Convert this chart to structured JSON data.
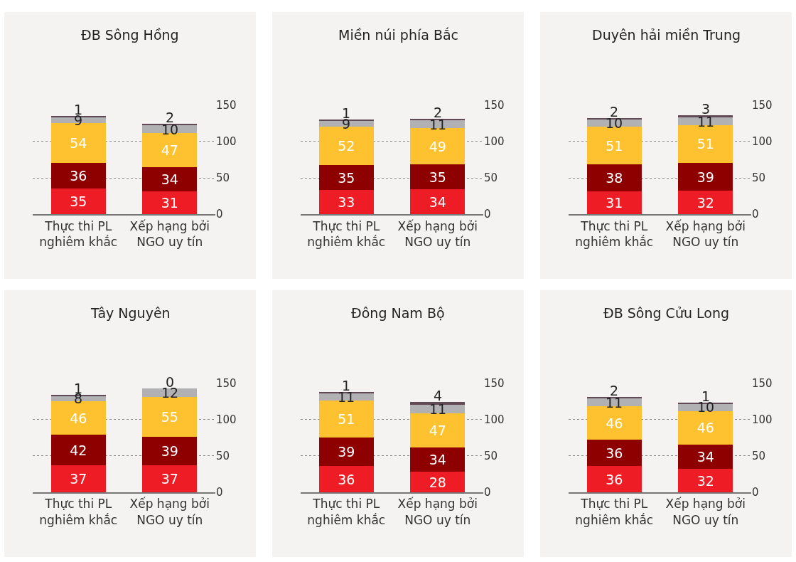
{
  "chart_data": [
    {
      "type": "bar",
      "stacked": true,
      "title": "ĐB Sông Hồng",
      "categories": [
        "Thực thi PL\nnghiêm khắc",
        "Xếp hạng bởi\nNGO uy tín"
      ],
      "series": [
        {
          "color": "#ee1d25",
          "values": [
            35,
            31
          ]
        },
        {
          "color": "#8e0000",
          "values": [
            36,
            34
          ]
        },
        {
          "color": "#fec231",
          "values": [
            54,
            47
          ]
        },
        {
          "color": "#b1b1b3",
          "values": [
            9,
            10
          ]
        },
        {
          "color": "#614a55",
          "values": [
            1,
            2
          ]
        }
      ],
      "ylim": [
        0,
        150
      ],
      "yticks": [
        0,
        50,
        100,
        150
      ],
      "grid": "y",
      "data_labels": true
    },
    {
      "type": "bar",
      "stacked": true,
      "title": "Miền núi phía Bắc",
      "categories": [
        "Thực thi PL\nnghiêm khắc",
        "Xếp hạng bởi\nNGO uy tín"
      ],
      "series": [
        {
          "color": "#ee1d25",
          "values": [
            33,
            34
          ]
        },
        {
          "color": "#8e0000",
          "values": [
            35,
            35
          ]
        },
        {
          "color": "#fec231",
          "values": [
            52,
            49
          ]
        },
        {
          "color": "#b1b1b3",
          "values": [
            9,
            11
          ]
        },
        {
          "color": "#614a55",
          "values": [
            1,
            2
          ]
        }
      ],
      "ylim": [
        0,
        150
      ],
      "yticks": [
        0,
        50,
        100,
        150
      ],
      "grid": "y",
      "data_labels": true
    },
    {
      "type": "bar",
      "stacked": true,
      "title": "Duyên hải miền Trung",
      "categories": [
        "Thực thi PL\nnghiêm khắc",
        "Xếp hạng bởi\nNGO uy tín"
      ],
      "series": [
        {
          "color": "#ee1d25",
          "values": [
            31,
            32
          ]
        },
        {
          "color": "#8e0000",
          "values": [
            38,
            39
          ]
        },
        {
          "color": "#fec231",
          "values": [
            51,
            51
          ]
        },
        {
          "color": "#b1b1b3",
          "values": [
            10,
            11
          ]
        },
        {
          "color": "#614a55",
          "values": [
            2,
            3
          ]
        }
      ],
      "ylim": [
        0,
        150
      ],
      "yticks": [
        0,
        50,
        100,
        150
      ],
      "grid": "y",
      "data_labels": true
    },
    {
      "type": "bar",
      "stacked": true,
      "title": "Tây Nguyên",
      "categories": [
        "Thực thi PL\nnghiêm khắc",
        "Xếp hạng bởi\nNGO uy tín"
      ],
      "series": [
        {
          "color": "#ee1d25",
          "values": [
            37,
            37
          ]
        },
        {
          "color": "#8e0000",
          "values": [
            42,
            39
          ]
        },
        {
          "color": "#fec231",
          "values": [
            46,
            55
          ]
        },
        {
          "color": "#b1b1b3",
          "values": [
            8,
            12
          ]
        },
        {
          "color": "#614a55",
          "values": [
            1,
            0
          ]
        }
      ],
      "ylim": [
        0,
        150
      ],
      "yticks": [
        0,
        50,
        100,
        150
      ],
      "grid": "y",
      "data_labels": true
    },
    {
      "type": "bar",
      "stacked": true,
      "title": "Đông Nam Bộ",
      "categories": [
        "Thực thi PL\nnghiêm khắc",
        "Xếp hạng bởi\nNGO uy tín"
      ],
      "series": [
        {
          "color": "#ee1d25",
          "values": [
            36,
            28
          ]
        },
        {
          "color": "#8e0000",
          "values": [
            39,
            34
          ]
        },
        {
          "color": "#fec231",
          "values": [
            51,
            47
          ]
        },
        {
          "color": "#b1b1b3",
          "values": [
            11,
            11
          ]
        },
        {
          "color": "#614a55",
          "values": [
            1,
            4
          ]
        }
      ],
      "ylim": [
        0,
        150
      ],
      "yticks": [
        0,
        50,
        100,
        150
      ],
      "grid": "y",
      "data_labels": true
    },
    {
      "type": "bar",
      "stacked": true,
      "title": "ĐB Sông Cửu Long",
      "categories": [
        "Thực thi PL\nnghiêm khắc",
        "Xếp hạng bởi\nNGO uy tín"
      ],
      "series": [
        {
          "color": "#ee1d25",
          "values": [
            36,
            32
          ]
        },
        {
          "color": "#8e0000",
          "values": [
            36,
            34
          ]
        },
        {
          "color": "#fec231",
          "values": [
            46,
            46
          ]
        },
        {
          "color": "#b1b1b3",
          "values": [
            11,
            10
          ]
        },
        {
          "color": "#614a55",
          "values": [
            2,
            1
          ]
        }
      ],
      "ylim": [
        0,
        150
      ],
      "yticks": [
        0,
        50,
        100,
        150
      ],
      "grid": "y",
      "data_labels": true
    }
  ]
}
